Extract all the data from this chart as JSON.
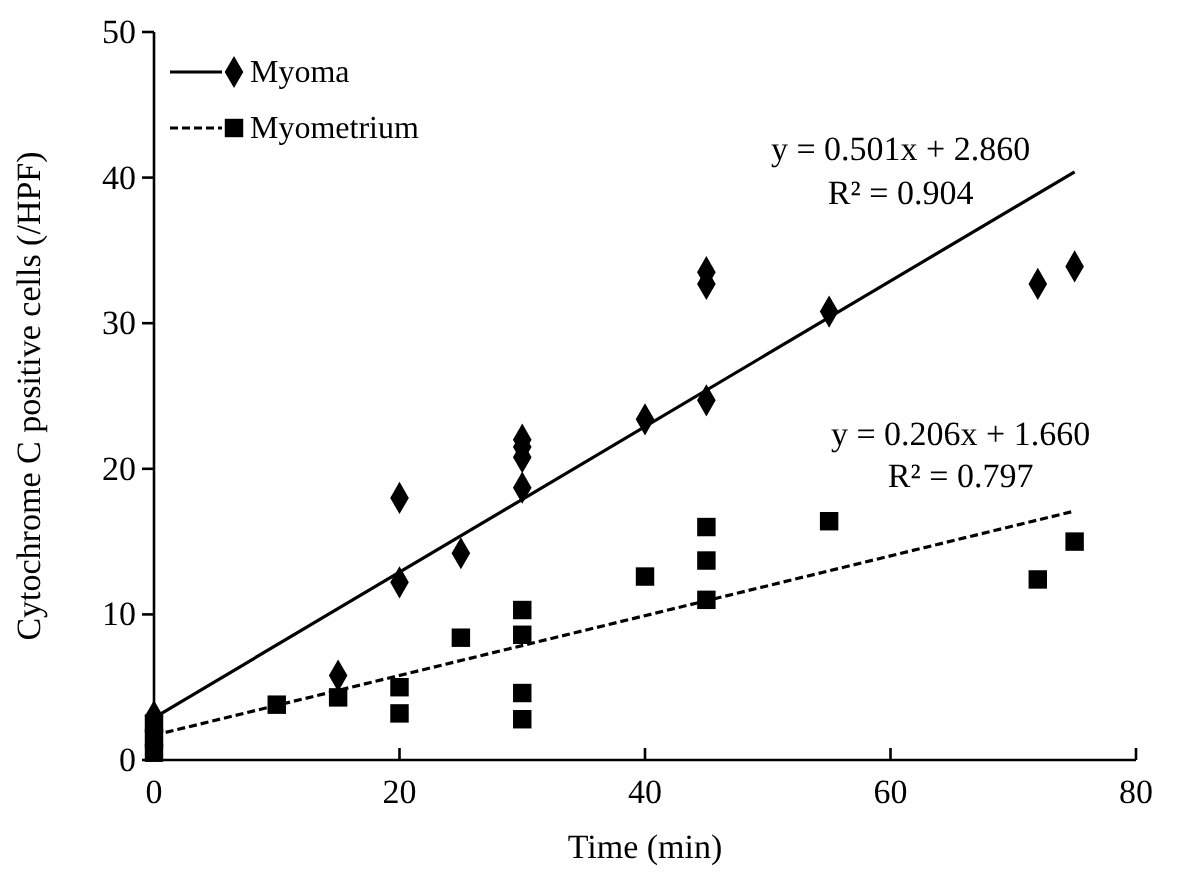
{
  "chart_data": {
    "type": "scatter",
    "xlabel": "Time (min)",
    "ylabel": "Cytochrome C positive cells (/HPF)",
    "xlim": [
      0,
      80
    ],
    "xticks": [
      0,
      20,
      40,
      60,
      80
    ],
    "ylim": [
      0,
      50
    ],
    "yticks": [
      0,
      10,
      20,
      30,
      40,
      50
    ],
    "grid": false,
    "legend": "top left",
    "series": [
      {
        "name": "Myoma",
        "marker": "diamond",
        "color": "#000000",
        "x": [
          0,
          15,
          20,
          20,
          25,
          30,
          30,
          30,
          30,
          40,
          45,
          45,
          45,
          55,
          72,
          75
        ],
        "values": [
          3,
          5.8,
          18,
          12.2,
          14.2,
          22,
          21.5,
          20.8,
          18.7,
          23.4,
          33.5,
          32.7,
          24.7,
          30.8,
          32.7,
          33.9
        ]
      },
      {
        "type": "line",
        "line_style": "solid",
        "color": "#000000",
        "x": [
          0,
          75
        ],
        "values": [
          2.9,
          40.4
        ]
      },
      {
        "name": "Myometrium",
        "marker": "square",
        "color": "#000000",
        "x": [
          0,
          0,
          0,
          10,
          15,
          20,
          20,
          25,
          30,
          30,
          30,
          30,
          40,
          45,
          45,
          45,
          55,
          72,
          75
        ],
        "values": [
          2.5,
          1.5,
          0.5,
          3.8,
          4.3,
          5,
          3.2,
          8.4,
          10.3,
          8.6,
          4.6,
          2.8,
          12.6,
          16,
          13.7,
          11,
          16.4,
          12.4,
          15
        ]
      },
      {
        "type": "line",
        "line_style": "dashed",
        "color": "#000000",
        "x": [
          0,
          75
        ],
        "values": [
          1.7,
          17.1
        ]
      }
    ],
    "annotations": [
      "y = 0.501x + 2.860",
      "R² = 0.904",
      "y = 0.206x + 1.660",
      "R² = 0.797"
    ]
  }
}
